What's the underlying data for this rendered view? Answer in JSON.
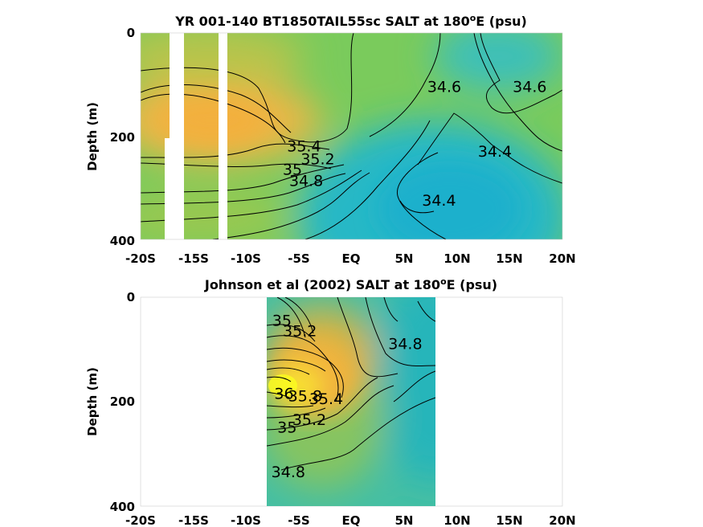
{
  "chart_data": [
    {
      "type": "heatmap",
      "title": "YR 001-140 BT1850TAIL55sc SALT at 180ºE (psu)",
      "title_main": "YR 001-140 BT1850TAIL55sc SALT at 180",
      "title_sup": "o",
      "title_end": "E (psu)",
      "xlabel": "",
      "ylabel": "Depth (m)",
      "xlim": [
        -20,
        20
      ],
      "ylim": [
        400,
        0
      ],
      "x_ticks": [
        -20,
        -15,
        -10,
        -5,
        0,
        5,
        10,
        15,
        20
      ],
      "x_tick_labels": [
        "-20S",
        "-15S",
        "-10S",
        "-5S",
        "EQ",
        "5N",
        "10N",
        "15N",
        "20N"
      ],
      "y_ticks": [
        0,
        200,
        400
      ],
      "y_tick_labels": [
        "0",
        "200",
        "400"
      ],
      "contour_labels": [
        {
          "text": "35.4",
          "x": -4.5,
          "y": 220
        },
        {
          "text": "35.2",
          "x": -3.2,
          "y": 245
        },
        {
          "text": "35",
          "x": -5.6,
          "y": 265
        },
        {
          "text": "34.8",
          "x": -4.3,
          "y": 287
        },
        {
          "text": "34.6",
          "x": 8.8,
          "y": 105
        },
        {
          "text": "34.6",
          "x": 16.9,
          "y": 105
        },
        {
          "text": "34.4",
          "x": 13.6,
          "y": 230
        },
        {
          "text": "34.4",
          "x": 8.3,
          "y": 325
        }
      ],
      "missing_data_columns": [
        [
          -17.6,
          -16.5
        ],
        [
          -13.2,
          -12.3
        ]
      ],
      "missing_data_partial": [
        [
          -18.0,
          -17.6,
          200,
          400
        ]
      ],
      "colormap": "parula",
      "colors": {
        "high": "#f0b63e",
        "mid": "#78cc5a",
        "low": "#20b2c8"
      }
    },
    {
      "type": "heatmap",
      "title": "Johnson et al (2002) SALT at 180ºE (psu)",
      "title_main": "Johnson et al (2002) SALT at 180",
      "title_sup": "o",
      "title_end": "E (psu)",
      "xlabel": "",
      "ylabel": "Depth (m)",
      "xlim": [
        -20,
        20
      ],
      "ylim": [
        400,
        0
      ],
      "data_xrange": [
        -8,
        8
      ],
      "x_ticks": [
        -20,
        -15,
        -10,
        -5,
        0,
        5,
        10,
        15,
        20
      ],
      "x_tick_labels": [
        "-20S",
        "-15S",
        "-10S",
        "-5S",
        "EQ",
        "5N",
        "10N",
        "15N",
        "20N"
      ],
      "y_ticks": [
        0,
        200,
        400
      ],
      "y_tick_labels": [
        "0",
        "200",
        "400"
      ],
      "contour_labels": [
        {
          "text": "35",
          "x": -6.6,
          "y": 45
        },
        {
          "text": "35.2",
          "x": -4.9,
          "y": 65
        },
        {
          "text": "34.8",
          "x": 5.1,
          "y": 90
        },
        {
          "text": "36",
          "x": -6.4,
          "y": 185
        },
        {
          "text": "35.8",
          "x": -4.4,
          "y": 190
        },
        {
          "text": "35.4",
          "x": -2.4,
          "y": 195
        },
        {
          "text": "35.2",
          "x": -4.0,
          "y": 235
        },
        {
          "text": "35",
          "x": -6.1,
          "y": 250
        },
        {
          "text": "34.8",
          "x": -6.0,
          "y": 335
        }
      ],
      "colormap": "parula",
      "colors": {
        "high": "#fafa20",
        "mid": "#f0b63e",
        "low": "#26b5b8"
      }
    }
  ]
}
